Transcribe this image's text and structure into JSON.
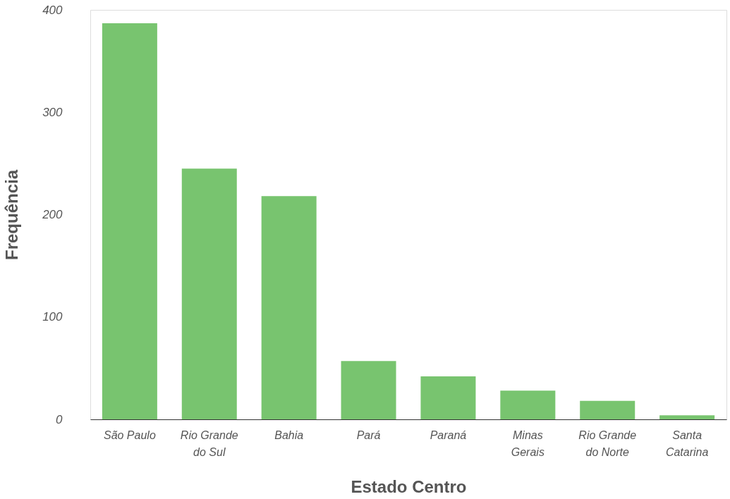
{
  "chart_data": {
    "type": "bar",
    "xlabel": "Estado Centro",
    "ylabel": "Frequência",
    "categories": [
      "São Paulo",
      "Rio Grande do Sul",
      "Bahia",
      "Pará",
      "Paraná",
      "Minas Gerais",
      "Rio Grande do Norte",
      "Santa Catarina"
    ],
    "values": [
      387,
      245,
      218,
      57,
      42,
      28,
      18,
      4
    ],
    "color": "#78c46f",
    "ylim": [
      0,
      400
    ],
    "yticks": [
      0,
      100,
      200,
      300,
      400
    ],
    "grid": false
  }
}
